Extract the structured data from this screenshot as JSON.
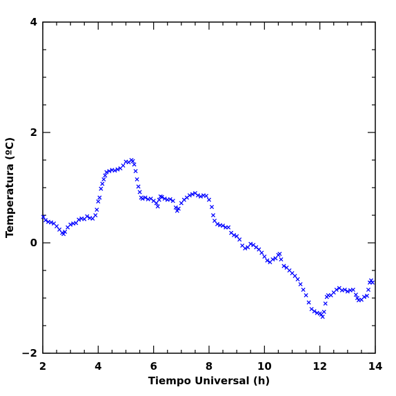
{
  "chart_data": {
    "type": "scatter",
    "title": "",
    "xlabel": "Tiempo Universal (h)",
    "ylabel": "Temperatura (ºC)",
    "xlim": [
      2,
      14
    ],
    "ylim": [
      -2,
      4
    ],
    "x_ticks": [
      "2",
      "4",
      "6",
      "8",
      "10",
      "12",
      "14"
    ],
    "y_ticks": [
      "−2",
      "0",
      "2",
      "4"
    ],
    "grid": false,
    "legend": "none",
    "marker": "x",
    "marker_color": "#0000ff",
    "points": [
      [
        2.02,
        0.47
      ],
      [
        2.1,
        0.41
      ],
      [
        2.2,
        0.38
      ],
      [
        2.3,
        0.37
      ],
      [
        2.4,
        0.35
      ],
      [
        2.5,
        0.3
      ],
      [
        2.6,
        0.24
      ],
      [
        2.7,
        0.18
      ],
      [
        2.75,
        0.16
      ],
      [
        2.8,
        0.2
      ],
      [
        2.9,
        0.28
      ],
      [
        3.0,
        0.33
      ],
      [
        3.1,
        0.35
      ],
      [
        3.2,
        0.36
      ],
      [
        3.3,
        0.42
      ],
      [
        3.4,
        0.44
      ],
      [
        3.5,
        0.43
      ],
      [
        3.6,
        0.48
      ],
      [
        3.7,
        0.45
      ],
      [
        3.8,
        0.44
      ],
      [
        3.9,
        0.5
      ],
      [
        3.95,
        0.6
      ],
      [
        4.0,
        0.75
      ],
      [
        4.05,
        0.82
      ],
      [
        4.1,
        0.98
      ],
      [
        4.15,
        1.07
      ],
      [
        4.2,
        1.15
      ],
      [
        4.25,
        1.22
      ],
      [
        4.3,
        1.28
      ],
      [
        4.4,
        1.3
      ],
      [
        4.5,
        1.32
      ],
      [
        4.6,
        1.31
      ],
      [
        4.7,
        1.33
      ],
      [
        4.8,
        1.35
      ],
      [
        4.9,
        1.4
      ],
      [
        5.0,
        1.47
      ],
      [
        5.1,
        1.46
      ],
      [
        5.2,
        1.5
      ],
      [
        5.25,
        1.48
      ],
      [
        5.3,
        1.42
      ],
      [
        5.35,
        1.3
      ],
      [
        5.4,
        1.15
      ],
      [
        5.45,
        1.02
      ],
      [
        5.5,
        0.92
      ],
      [
        5.55,
        0.82
      ],
      [
        5.6,
        0.8
      ],
      [
        5.7,
        0.82
      ],
      [
        5.8,
        0.79
      ],
      [
        5.9,
        0.8
      ],
      [
        6.0,
        0.76
      ],
      [
        6.1,
        0.72
      ],
      [
        6.15,
        0.66
      ],
      [
        6.2,
        0.78
      ],
      [
        6.25,
        0.84
      ],
      [
        6.3,
        0.83
      ],
      [
        6.4,
        0.8
      ],
      [
        6.5,
        0.78
      ],
      [
        6.6,
        0.79
      ],
      [
        6.7,
        0.76
      ],
      [
        6.8,
        0.64
      ],
      [
        6.85,
        0.58
      ],
      [
        6.9,
        0.62
      ],
      [
        7.0,
        0.72
      ],
      [
        7.1,
        0.78
      ],
      [
        7.2,
        0.82
      ],
      [
        7.3,
        0.86
      ],
      [
        7.4,
        0.88
      ],
      [
        7.5,
        0.9
      ],
      [
        7.6,
        0.86
      ],
      [
        7.7,
        0.84
      ],
      [
        7.8,
        0.86
      ],
      [
        7.9,
        0.85
      ],
      [
        8.0,
        0.78
      ],
      [
        8.1,
        0.65
      ],
      [
        8.15,
        0.5
      ],
      [
        8.2,
        0.4
      ],
      [
        8.3,
        0.34
      ],
      [
        8.4,
        0.32
      ],
      [
        8.5,
        0.31
      ],
      [
        8.6,
        0.28
      ],
      [
        8.7,
        0.28
      ],
      [
        8.8,
        0.18
      ],
      [
        8.9,
        0.14
      ],
      [
        9.0,
        0.12
      ],
      [
        9.1,
        0.06
      ],
      [
        9.2,
        -0.05
      ],
      [
        9.3,
        -0.1
      ],
      [
        9.4,
        -0.08
      ],
      [
        9.5,
        -0.02
      ],
      [
        9.6,
        -0.04
      ],
      [
        9.7,
        -0.08
      ],
      [
        9.8,
        -0.12
      ],
      [
        9.9,
        -0.18
      ],
      [
        10.0,
        -0.25
      ],
      [
        10.1,
        -0.32
      ],
      [
        10.2,
        -0.35
      ],
      [
        10.3,
        -0.3
      ],
      [
        10.4,
        -0.28
      ],
      [
        10.5,
        -0.22
      ],
      [
        10.55,
        -0.2
      ],
      [
        10.6,
        -0.3
      ],
      [
        10.7,
        -0.42
      ],
      [
        10.8,
        -0.45
      ],
      [
        10.9,
        -0.5
      ],
      [
        11.0,
        -0.55
      ],
      [
        11.1,
        -0.6
      ],
      [
        11.2,
        -0.66
      ],
      [
        11.3,
        -0.75
      ],
      [
        11.4,
        -0.85
      ],
      [
        11.5,
        -0.95
      ],
      [
        11.6,
        -1.08
      ],
      [
        11.7,
        -1.2
      ],
      [
        11.8,
        -1.24
      ],
      [
        11.9,
        -1.27
      ],
      [
        12.0,
        -1.28
      ],
      [
        12.05,
        -1.3
      ],
      [
        12.1,
        -1.34
      ],
      [
        12.15,
        -1.25
      ],
      [
        12.2,
        -1.1
      ],
      [
        12.25,
        -0.98
      ],
      [
        12.3,
        -0.95
      ],
      [
        12.4,
        -0.95
      ],
      [
        12.5,
        -0.9
      ],
      [
        12.6,
        -0.85
      ],
      [
        12.7,
        -0.82
      ],
      [
        12.8,
        -0.86
      ],
      [
        12.9,
        -0.85
      ],
      [
        13.0,
        -0.88
      ],
      [
        13.1,
        -0.86
      ],
      [
        13.2,
        -0.85
      ],
      [
        13.3,
        -0.94
      ],
      [
        13.35,
        -1.0
      ],
      [
        13.4,
        -1.04
      ],
      [
        13.5,
        -1.03
      ],
      [
        13.6,
        -0.98
      ],
      [
        13.7,
        -0.96
      ],
      [
        13.75,
        -0.85
      ],
      [
        13.8,
        -0.72
      ],
      [
        13.85,
        -0.68
      ],
      [
        13.9,
        -0.72
      ]
    ]
  }
}
